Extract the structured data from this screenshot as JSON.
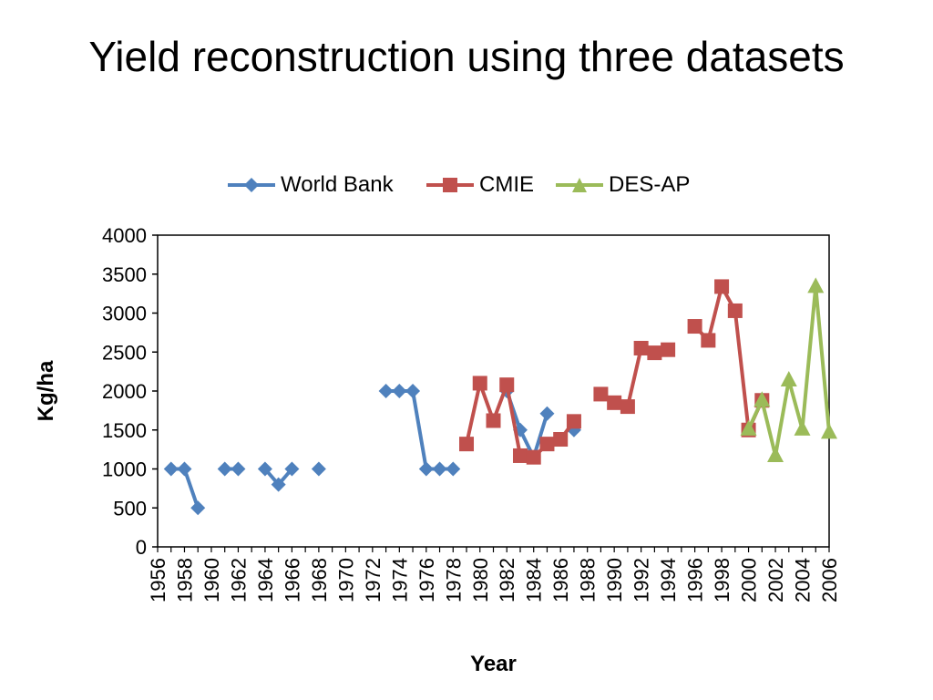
{
  "chart_data": {
    "type": "line",
    "title": "Yield reconstruction using three datasets",
    "xlabel": "Year",
    "ylabel": "Kg/ha",
    "xlim": [
      1956,
      2006
    ],
    "ylim": [
      0,
      4000
    ],
    "y_ticks": [
      0,
      500,
      1000,
      1500,
      2000,
      2500,
      3000,
      3500,
      4000
    ],
    "x_ticks": [
      1956,
      1958,
      1960,
      1962,
      1964,
      1966,
      1968,
      1970,
      1972,
      1974,
      1976,
      1978,
      1980,
      1982,
      1984,
      1986,
      1988,
      1990,
      1992,
      1994,
      1996,
      1998,
      2000,
      2002,
      2004,
      2006
    ],
    "legend_position": "top",
    "grid": false,
    "series": [
      {
        "name": "World Bank",
        "color": "#4F81BD",
        "marker": "diamond",
        "segments": [
          [
            [
              1957,
              1000
            ],
            [
              1958,
              1000
            ],
            [
              1959,
              500
            ]
          ],
          [
            [
              1961,
              1000
            ],
            [
              1962,
              1000
            ]
          ],
          [
            [
              1964,
              1000
            ],
            [
              1965,
              800
            ],
            [
              1966,
              1000
            ]
          ],
          [
            [
              1968,
              1000
            ]
          ],
          [
            [
              1973,
              2000
            ],
            [
              1974,
              2000
            ],
            [
              1975,
              2000
            ],
            [
              1976,
              1000
            ],
            [
              1977,
              1000
            ],
            [
              1978,
              1000
            ]
          ],
          [
            [
              1982,
              2000
            ],
            [
              1983,
              1500
            ],
            [
              1984,
              1150
            ],
            [
              1985,
              1710
            ]
          ],
          [
            [
              1987,
              1500
            ]
          ]
        ]
      },
      {
        "name": "CMIE",
        "color": "#C0504D",
        "marker": "square",
        "segments": [
          [
            [
              1979,
              1320
            ],
            [
              1980,
              2100
            ],
            [
              1981,
              1620
            ],
            [
              1982,
              2080
            ],
            [
              1983,
              1170
            ],
            [
              1984,
              1150
            ],
            [
              1985,
              1320
            ],
            [
              1986,
              1380
            ],
            [
              1987,
              1610
            ]
          ],
          [
            [
              1989,
              1960
            ],
            [
              1990,
              1850
            ],
            [
              1991,
              1800
            ],
            [
              1992,
              2550
            ],
            [
              1993,
              2490
            ],
            [
              1994,
              2530
            ]
          ],
          [
            [
              1996,
              2830
            ],
            [
              1997,
              2650
            ],
            [
              1998,
              3340
            ],
            [
              1999,
              3030
            ],
            [
              2000,
              1500
            ],
            [
              2001,
              1880
            ]
          ]
        ]
      },
      {
        "name": "DES-AP",
        "color": "#9BBB59",
        "marker": "triangle",
        "segments": [
          [
            [
              2000,
              1510
            ],
            [
              2001,
              1880
            ],
            [
              2002,
              1170
            ],
            [
              2003,
              2140
            ],
            [
              2004,
              1510
            ],
            [
              2005,
              3340
            ],
            [
              2006,
              1470
            ]
          ]
        ]
      }
    ]
  }
}
